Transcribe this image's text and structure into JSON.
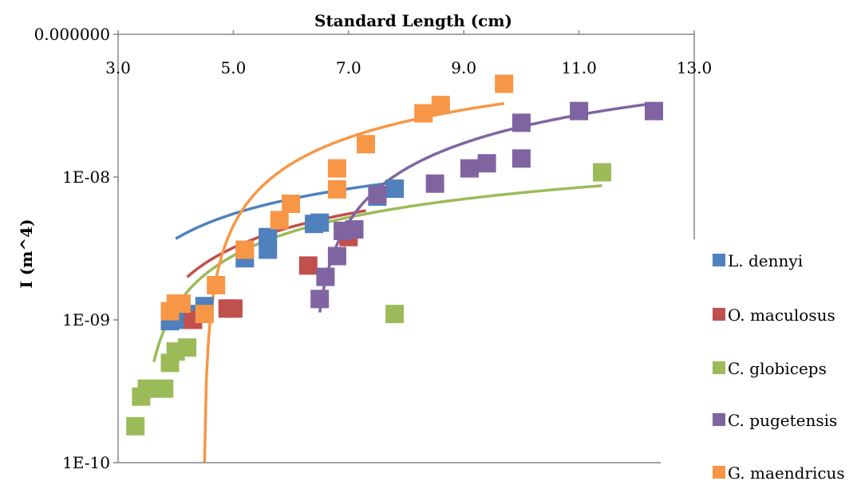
{
  "chart_data": {
    "type": "scatter",
    "title": "",
    "xlabel": "Standard Length (cm)",
    "ylabel": "I (m^4)",
    "xlim": [
      3.0,
      13.0
    ],
    "x_ticks": [
      "3.0",
      "5.0",
      "7.0",
      "9.0",
      "11.0",
      "13.0"
    ],
    "y_scale": "log",
    "y_ticks": [
      "0.000000",
      "1E-08",
      "1E-09",
      "1E-10"
    ],
    "ylim": [
      1e-10,
      1e-07
    ],
    "x_axis_position": "top",
    "legend_position": "right",
    "grid": false,
    "series": [
      {
        "name": "L. dennyi",
        "color": "#4F81BD",
        "points": [
          [
            3.9,
            9.8e-10
          ],
          [
            4.0,
            1.05e-09
          ],
          [
            4.2,
            1e-09
          ],
          [
            4.3,
            1.1e-09
          ],
          [
            4.5,
            1.25e-09
          ],
          [
            5.2,
            2.7e-09
          ],
          [
            5.6,
            3.1e-09
          ],
          [
            5.6,
            3.8e-09
          ],
          [
            6.4,
            4.7e-09
          ],
          [
            6.5,
            4.8e-09
          ],
          [
            7.5,
            7.3e-09
          ],
          [
            7.8,
            8.3e-09
          ]
        ],
        "trend": {
          "a": 8.2e-09,
          "b": -7.67e-09,
          "x": [
            4.0,
            7.8
          ]
        }
      },
      {
        "name": "O. maculosus",
        "color": "#C0504D",
        "points": [
          [
            4.3,
            1e-09
          ],
          [
            4.9,
            1.2e-09
          ],
          [
            5.0,
            1.2e-09
          ],
          [
            6.3,
            2.4e-09
          ],
          [
            7.0,
            3.8e-09
          ]
        ],
        "trend": {
          "a": 6.93e-09,
          "b": -7.95e-09,
          "x": [
            4.2,
            7.3
          ]
        }
      },
      {
        "name": "C. globiceps",
        "color": "#9BBB59",
        "points": [
          [
            3.3,
            1.8e-10
          ],
          [
            3.4,
            2.9e-10
          ],
          [
            3.5,
            3.3e-10
          ],
          [
            3.8,
            3.3e-10
          ],
          [
            3.9,
            5e-10
          ],
          [
            4.0,
            6e-10
          ],
          [
            4.2,
            6.4e-10
          ],
          [
            7.8,
            1.1e-09
          ],
          [
            11.4,
            1.08e-08
          ]
        ],
        "trend": {
          "a": 7.15e-09,
          "b": -8.69e-09,
          "x": [
            3.62,
            11.4
          ]
        }
      },
      {
        "name": "C. pugetensis",
        "color": "#8064A2",
        "points": [
          [
            6.5,
            1.4e-09
          ],
          [
            6.6,
            2e-09
          ],
          [
            6.8,
            2.8e-09
          ],
          [
            6.9,
            4.2e-09
          ],
          [
            7.1,
            4.3e-09
          ],
          [
            7.5,
            7.5e-09
          ],
          [
            8.5,
            9e-09
          ],
          [
            9.1,
            1.15e-08
          ],
          [
            9.4,
            1.25e-08
          ],
          [
            10.0,
            1.35e-08
          ],
          [
            10.0,
            2.4e-08
          ],
          [
            11.0,
            2.9e-08
          ],
          [
            12.3,
            2.9e-08
          ]
        ],
        "trend": {
          "a": 4.97e-08,
          "b": -9.19e-08,
          "x": [
            6.5,
            12.3
          ]
        }
      },
      {
        "name": "G. maendricus",
        "color": "#F79646",
        "points": [
          [
            3.9,
            1.15e-09
          ],
          [
            4.0,
            1.3e-09
          ],
          [
            4.1,
            1.3e-09
          ],
          [
            4.5,
            1.1e-09
          ],
          [
            4.7,
            1.75e-09
          ],
          [
            5.2,
            3.1e-09
          ],
          [
            5.8,
            5e-09
          ],
          [
            6.0,
            6.5e-09
          ],
          [
            6.8,
            8.2e-09
          ],
          [
            6.8,
            1.15e-08
          ],
          [
            7.3,
            1.7e-08
          ],
          [
            8.3,
            2.8e-08
          ],
          [
            8.6,
            3.2e-08
          ],
          [
            9.7,
            4.5e-08
          ]
        ],
        "trend": {
          "a": 4.26e-08,
          "b": -6.4e-08,
          "x": [
            4.5,
            9.7
          ]
        }
      }
    ]
  }
}
